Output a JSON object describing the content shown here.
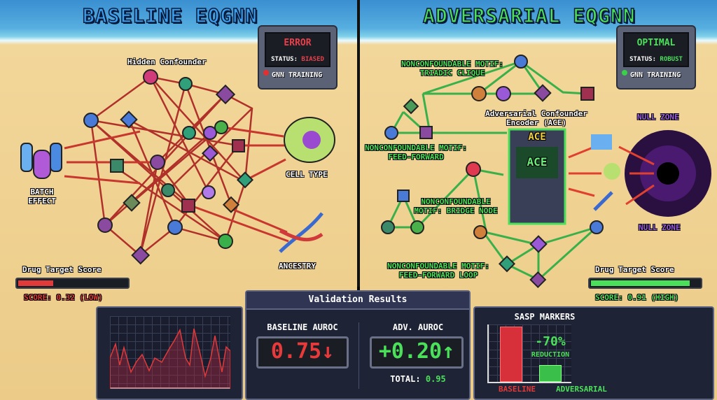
{
  "left": {
    "title": "BASELINE EQGNN",
    "monitor": {
      "alert": "ERROR",
      "status_label": "STATUS:",
      "status_value": "BIASED",
      "caption": "GNN TRAINING",
      "alert_color": "#e8404a"
    },
    "labels": {
      "hidden_confounder": "Hidden Confounder",
      "batch_effect": "BATCH EFFECT",
      "cell_type": "CELL TYPE",
      "ancestry": "ANCESTRY"
    },
    "score": {
      "title": "Drug Target Score",
      "text": "SCORE: 0.32 (LOW)",
      "value": 0.32,
      "color": "#e03a3a"
    }
  },
  "right": {
    "title": "ADVERSARIAL EQGNN",
    "monitor": {
      "alert": "OPTIMAL",
      "status_label": "STATUS:",
      "status_value": "ROBUST",
      "caption": "GNN TRAINING",
      "alert_color": "#4be05a"
    },
    "labels": {
      "triadic": "NONCONFOUNDABLE MOTIF: TRIADIC CLIQUE",
      "feed_forward": "NONCONFOUNDABLE MOTIF: FEED-FORWARD",
      "bridge": "NONCONFOUNDABLE MOTIF: BRIDGE NODE",
      "ff_loop": "NONCONFOUNDABLE MOTIF: FEED-FORWARD LOOP",
      "ace": "Adversarial Confounder Encoder (ACE)",
      "ace_marquee": "ACE",
      "ace_screen": "ACE",
      "null_zone_top": "NULL ZONE",
      "null_zone_bottom": "NULL ZONE"
    },
    "score": {
      "title": "Drug Target Score",
      "text": "SCORE: 0.91 (HIGH)",
      "value": 0.91,
      "color": "#4be05a"
    }
  },
  "validation": {
    "title": "Validation Results",
    "baseline_label": "BASELINE AUROC",
    "baseline_value": "0.75",
    "baseline_arrow": "↓",
    "adv_label": "ADV. AUROC",
    "adv_value": "+0.20",
    "adv_arrow": "↑",
    "total_label": "TOTAL:",
    "total_value": "0.95"
  },
  "sasp": {
    "title": "SASP MARKERS",
    "reduction": "-70%",
    "reduction_label": "REDUCTION",
    "baseline_label": "BASELINE",
    "adversarial_label": "ADVERSARIAL",
    "baseline_level": 1.0,
    "adversarial_level": 0.3
  }
}
